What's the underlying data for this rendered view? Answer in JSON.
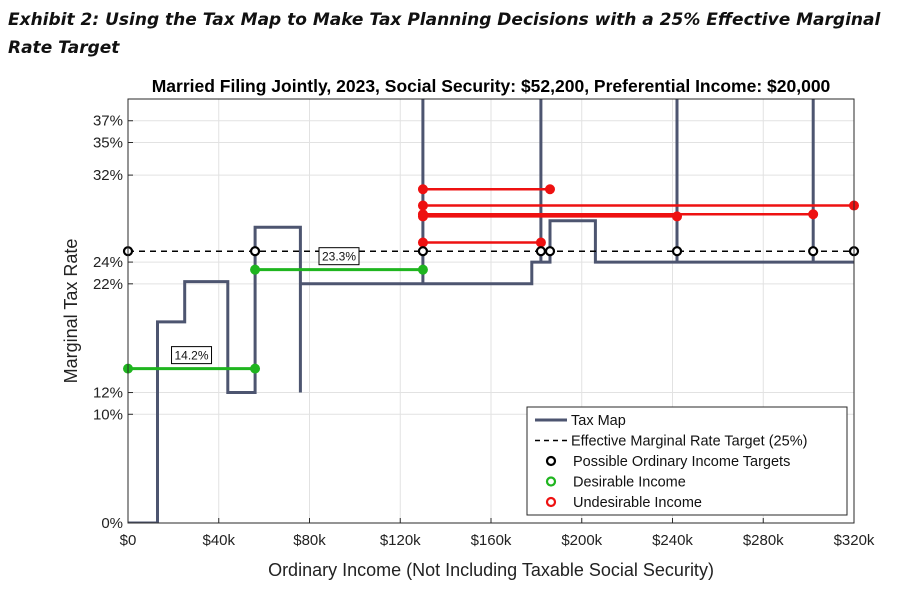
{
  "exhibit": {
    "title": "Exhibit 2: Using the Tax Map to Make Tax Planning Decisions with a 25% Effective Marginal Rate Target"
  },
  "chart_data": {
    "type": "line",
    "title": "Married Filing Jointly, 2023, Social Security: $52,200, Preferential Income: $20,000",
    "xlabel": "Ordinary Income (Not Including Taxable Social Security)",
    "ylabel": "Marginal Tax Rate",
    "xlim": [
      0,
      320000
    ],
    "ylim": [
      0,
      39
    ],
    "grid": true,
    "legend_position": "bottom-right",
    "x_ticks": [
      {
        "value": 0,
        "label": "$0"
      },
      {
        "value": 40000,
        "label": "$40k"
      },
      {
        "value": 80000,
        "label": "$80k"
      },
      {
        "value": 120000,
        "label": "$120k"
      },
      {
        "value": 160000,
        "label": "$160k"
      },
      {
        "value": 200000,
        "label": "$200k"
      },
      {
        "value": 240000,
        "label": "$240k"
      },
      {
        "value": 280000,
        "label": "$280k"
      },
      {
        "value": 320000,
        "label": "$320k"
      }
    ],
    "y_ticks": [
      {
        "value": 0,
        "label": "0%"
      },
      {
        "value": 10,
        "label": "10%"
      },
      {
        "value": 12,
        "label": "12%"
      },
      {
        "value": 22,
        "label": "22%"
      },
      {
        "value": 24,
        "label": "24%"
      },
      {
        "value": 32,
        "label": "32%"
      },
      {
        "value": 35,
        "label": "35%"
      },
      {
        "value": 37,
        "label": "37%"
      }
    ],
    "target_rate": 25,
    "series": [
      {
        "name": "Tax Map",
        "color": "#4d5570",
        "style": "solid",
        "points": [
          [
            0,
            0
          ],
          [
            13000,
            0
          ],
          [
            13000,
            18.5
          ],
          [
            25000,
            18.5
          ],
          [
            25000,
            22.2
          ],
          [
            44000,
            22.2
          ],
          [
            44000,
            12
          ],
          [
            56000,
            12
          ],
          [
            56000,
            27.2
          ],
          [
            76000,
            27.2
          ],
          [
            76000,
            12
          ],
          [
            76000,
            22
          ],
          [
            130000,
            22
          ],
          [
            130000,
            60
          ],
          [
            130000,
            22
          ],
          [
            178000,
            22
          ],
          [
            178000,
            24
          ],
          [
            182000,
            24
          ],
          [
            182000,
            60
          ],
          [
            182000,
            24
          ],
          [
            186000,
            24
          ],
          [
            186000,
            27.8
          ],
          [
            206000,
            27.8
          ],
          [
            206000,
            24
          ],
          [
            242000,
            24
          ],
          [
            242000,
            60
          ],
          [
            242000,
            24
          ],
          [
            302000,
            24
          ],
          [
            302000,
            60
          ],
          [
            302000,
            24
          ],
          [
            320000,
            24
          ]
        ]
      },
      {
        "name": "Effective Marginal Rate Target (25%)",
        "color": "#000000",
        "style": "dashed",
        "points": [
          [
            0,
            25
          ],
          [
            320000,
            25
          ]
        ]
      },
      {
        "name": "Possible Ordinary Income Targets",
        "color": "#000000",
        "style": "markers",
        "points": [
          [
            0,
            25
          ],
          [
            56000,
            25
          ],
          [
            130000,
            25
          ],
          [
            182000,
            25
          ],
          [
            186000,
            25
          ],
          [
            242000,
            25
          ],
          [
            302000,
            25
          ],
          [
            320000,
            25
          ]
        ]
      },
      {
        "name": "Desirable Income",
        "color": "#1fb51f",
        "style": "segments",
        "segments": [
          {
            "x1": 0,
            "x2": 56000,
            "y": 14.2,
            "label": "14.2%"
          },
          {
            "x1": 56000,
            "x2": 130000,
            "y": 23.3,
            "label": "23.3%"
          }
        ]
      },
      {
        "name": "Undesirable Income",
        "color": "#ee1111",
        "style": "segments",
        "segments": [
          {
            "x1": 130000,
            "x2": 186000,
            "y": 30.7
          },
          {
            "x1": 130000,
            "x2": 320000,
            "y": 29.2
          },
          {
            "x1": 130000,
            "x2": 242000,
            "y": 28.2
          },
          {
            "x1": 130000,
            "x2": 302000,
            "y": 28.4
          },
          {
            "x1": 130000,
            "x2": 182000,
            "y": 25.8
          }
        ]
      }
    ],
    "legend": [
      {
        "label": "Tax Map",
        "kind": "line",
        "color": "#4d5570"
      },
      {
        "label": "Effective Marginal Rate Target (25%)",
        "kind": "dashed",
        "color": "#000000"
      },
      {
        "label": "Possible Ordinary Income Targets",
        "kind": "marker",
        "color": "#000000"
      },
      {
        "label": "Desirable Income",
        "kind": "marker",
        "color": "#1fb51f"
      },
      {
        "label": "Undesirable Income",
        "kind": "marker",
        "color": "#ee1111"
      }
    ]
  }
}
